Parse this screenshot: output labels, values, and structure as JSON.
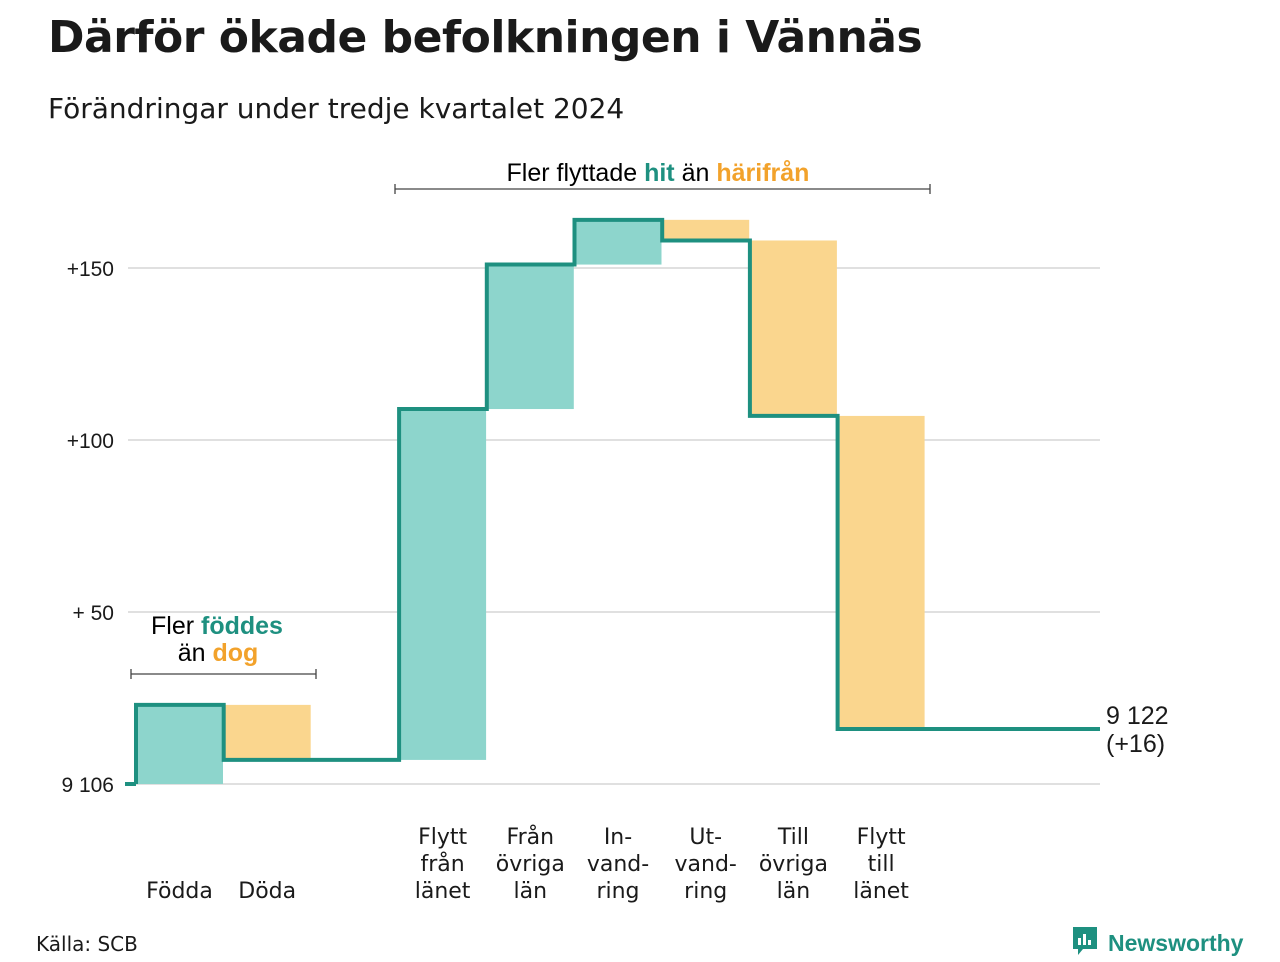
{
  "title": "Därför ökade befolkningen i Vännäs",
  "subtitle": "Förändringar under tredje kvartalet 2024",
  "source": "Källa: SCB",
  "brand": "Newsworthy",
  "colors": {
    "increase": "#8dd5cc",
    "decrease": "#fad68e",
    "line": "#1e9080",
    "accent_teal": "#1e9080",
    "accent_orange": "#f2a22b",
    "grid": "#e0e0e0"
  },
  "annotations": {
    "migration": {
      "prefix": "Fler flyttade ",
      "teal": "hit",
      "middle": " än ",
      "orange": "härifrån"
    },
    "natural": {
      "prefix": "Fler ",
      "teal": "föddes",
      "line2_prefix": "än ",
      "orange": "dog"
    }
  },
  "chart_data": {
    "type": "waterfall",
    "title": "Därför ökade befolkningen i Vännäs",
    "subtitle": "Förändringar under tredje kvartalet 2024",
    "base_population": 9106,
    "categories": [
      {
        "label": [
          "Födda"
        ],
        "change": 23
      },
      {
        "label": [
          "Döda"
        ],
        "change": -16
      },
      {
        "label": [
          ""
        ],
        "change": 0
      },
      {
        "label": [
          "Flytt",
          "från",
          "länet"
        ],
        "change": 102
      },
      {
        "label": [
          "Från",
          "övriga",
          "län"
        ],
        "change": 42
      },
      {
        "label": [
          "In-",
          "vand-",
          "ring"
        ],
        "change": 13
      },
      {
        "label": [
          "Ut-",
          "vand-",
          "ring"
        ],
        "change": -6
      },
      {
        "label": [
          "Till",
          "övriga",
          "län"
        ],
        "change": -51
      },
      {
        "label": [
          "Flytt",
          "till",
          "länet"
        ],
        "change": -91
      }
    ],
    "y_ticks": [
      {
        "value": 0,
        "label": "9 106"
      },
      {
        "value": 50,
        "label": "+ 50"
      },
      {
        "value": 100,
        "label": "+100"
      },
      {
        "value": 150,
        "label": "+150"
      }
    ],
    "ylim": [
      0,
      165
    ],
    "end_label": [
      "9 122",
      "(+16)"
    ],
    "grid": true
  }
}
